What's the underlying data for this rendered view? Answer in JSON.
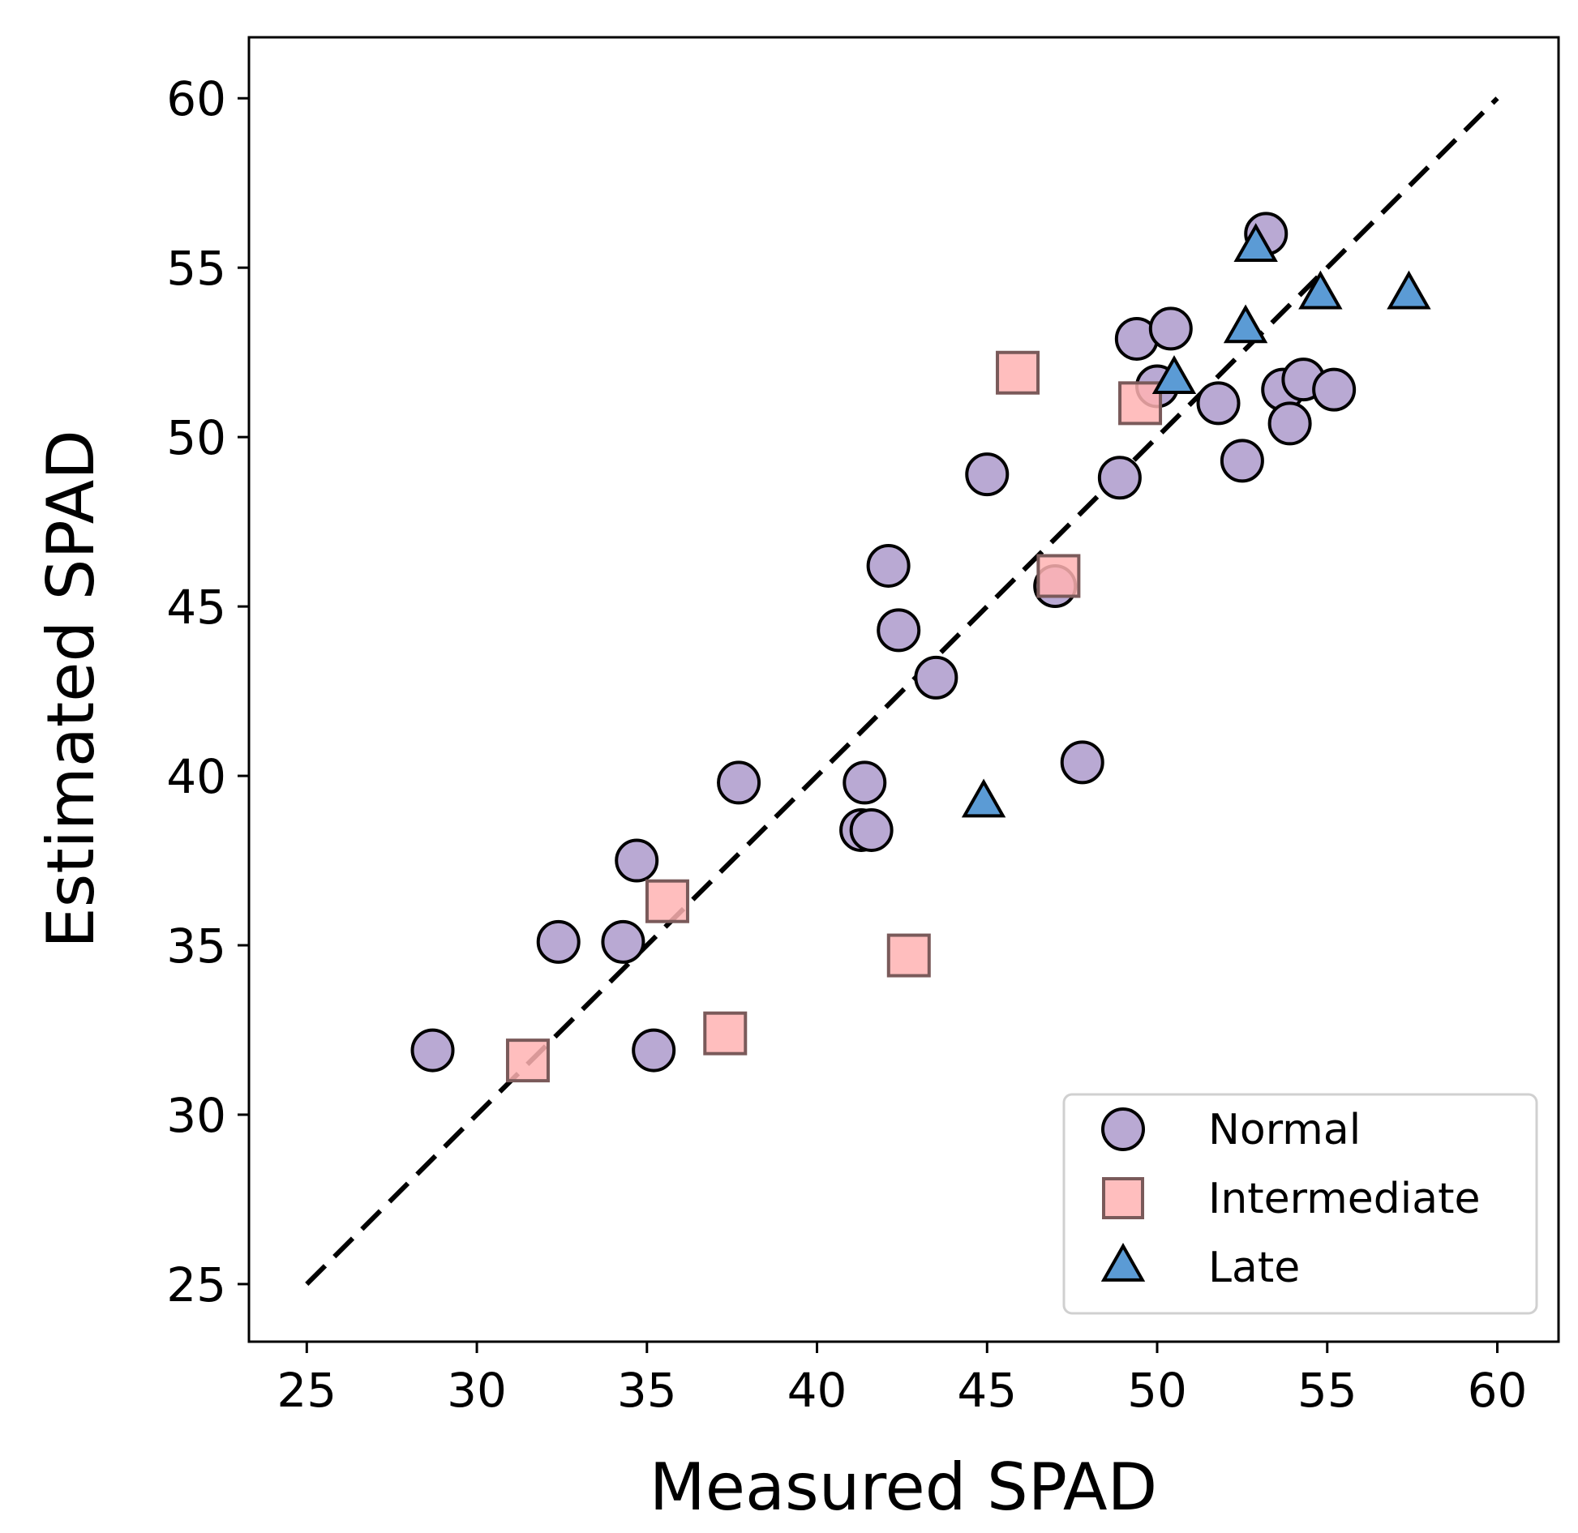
{
  "chart_data": {
    "type": "scatter",
    "title": "",
    "xlabel": "Measured SPAD",
    "ylabel": "Estimated SPAD",
    "xlim": [
      23.3,
      61.8
    ],
    "ylim": [
      23.3,
      61.8
    ],
    "xticks": [
      25,
      30,
      35,
      40,
      45,
      50,
      55,
      60
    ],
    "yticks": [
      25,
      30,
      35,
      40,
      45,
      50,
      55,
      60
    ],
    "reference_line": {
      "style": "dashed",
      "color": "#000000",
      "from": [
        25,
        25
      ],
      "to": [
        60,
        60
      ]
    },
    "legend_position": "lower-right",
    "series": [
      {
        "name": "Normal",
        "marker": "circle",
        "color": "#b9a9d3",
        "edge_color": "#000000",
        "points": [
          [
            28.7,
            31.9
          ],
          [
            32.4,
            35.1
          ],
          [
            34.3,
            35.1
          ],
          [
            34.7,
            37.5
          ],
          [
            35.2,
            31.9
          ],
          [
            37.7,
            39.8
          ],
          [
            41.3,
            38.4
          ],
          [
            41.6,
            38.4
          ],
          [
            41.4,
            39.8
          ],
          [
            42.1,
            46.2
          ],
          [
            42.4,
            44.3
          ],
          [
            43.5,
            42.9
          ],
          [
            45.0,
            48.9
          ],
          [
            47.0,
            45.6
          ],
          [
            47.8,
            40.4
          ],
          [
            48.9,
            48.8
          ],
          [
            49.4,
            52.9
          ],
          [
            50.0,
            51.5
          ],
          [
            50.4,
            53.2
          ],
          [
            51.8,
            51.0
          ],
          [
            52.5,
            49.3
          ],
          [
            53.2,
            56.0
          ],
          [
            53.7,
            51.4
          ],
          [
            53.9,
            50.4
          ],
          [
            54.3,
            51.7
          ],
          [
            55.2,
            51.4
          ]
        ]
      },
      {
        "name": "Intermediate",
        "marker": "square",
        "color": "#ffb3b3",
        "edge_color": "#7a5a5a",
        "points": [
          [
            31.5,
            31.6
          ],
          [
            35.6,
            36.3
          ],
          [
            37.3,
            32.4
          ],
          [
            42.7,
            34.7
          ],
          [
            45.9,
            51.9
          ],
          [
            47.1,
            45.9
          ],
          [
            49.5,
            51.0
          ]
        ]
      },
      {
        "name": "Late",
        "marker": "triangle",
        "color": "#5b9bd5",
        "edge_color": "#000000",
        "points": [
          [
            44.9,
            39.2
          ],
          [
            50.5,
            51.7
          ],
          [
            52.6,
            53.2
          ],
          [
            52.9,
            55.6
          ],
          [
            54.8,
            54.2
          ],
          [
            57.4,
            54.2
          ]
        ]
      }
    ]
  }
}
